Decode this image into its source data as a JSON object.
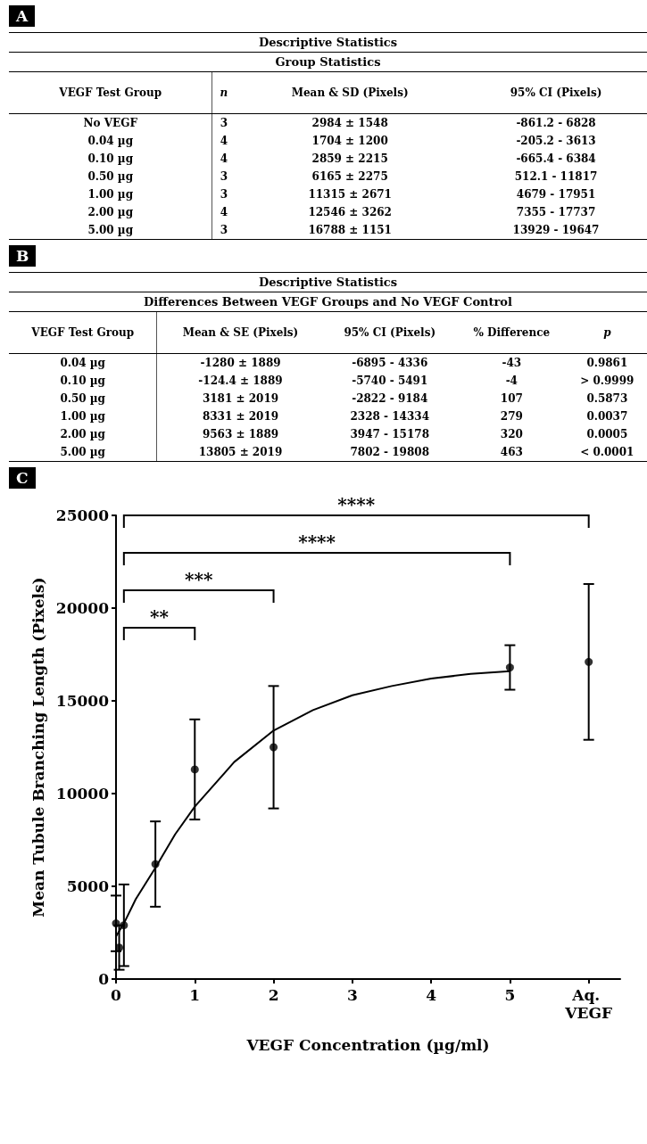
{
  "chart_data": [
    {
      "type": "other",
      "title": "Descriptive Statistics",
      "subtitle": "Group Statistics",
      "annotations": [
        "A",
        "VEGF Test Group",
        "n",
        "Mean & SD (Pixels)",
        "95% CI (Pixels)",
        "No VEGF",
        "3",
        "2984 ± 1548",
        "-861.2 - 6828",
        "0.04 µg",
        "4",
        "1704 ± 1200",
        "-205.2 - 3613",
        "0.10 µg",
        "4",
        "2859 ± 2215",
        "-665.4 - 6384",
        "0.50 µg",
        "3",
        "6165 ± 2275",
        "512.1 - 11817",
        "1.00 µg",
        "3",
        "11315 ± 2671",
        "4679 - 17951",
        "2.00 µg",
        "4",
        "12546 ± 3262",
        "7355 - 17737",
        "5.00 µg",
        "3",
        "16788 ± 1151",
        "13929 - 19647"
      ]
    },
    {
      "type": "other",
      "title": "Descriptive Statistics",
      "subtitle": "Differences Between VEGF Groups and No VEGF Control",
      "annotations": [
        "B",
        "VEGF Test Group",
        "Mean & SE (Pixels)",
        "95% CI (Pixels)",
        "% Difference",
        "p",
        "0.04 µg",
        "-1280 ± 1889",
        "-6895 - 4336",
        "-43",
        "0.9861",
        "0.10 µg",
        "-124.4 ± 1889",
        "-5740 - 5491",
        "-4",
        "> 0.9999",
        "0.50 µg",
        "3181 ± 2019",
        "-2822 - 9184",
        "107",
        "0.5873",
        "1.00 µg",
        "8331 ± 2019",
        "2328 - 14334",
        "279",
        "0.0037",
        "2.00 µg",
        "9563 ± 1889",
        "3947 - 15178",
        "320",
        "0.0005",
        "5.00 µg",
        "13805 ± 2019",
        "7802 - 19808",
        "463",
        "< 0.0001"
      ]
    },
    {
      "type": "scatter",
      "xlabel": "VEGF Concentration (µg/ml)",
      "ylabel": "Mean Tubule Branching Length (Pixels)",
      "xlim": [
        0,
        6.4
      ],
      "xticks": [
        0,
        1,
        2,
        3,
        4,
        5,
        {
          "value": 6,
          "label": "Aq. VEGF"
        }
      ],
      "ylim": [
        0,
        25000
      ],
      "yticks": [
        0,
        5000,
        10000,
        15000,
        20000,
        25000
      ],
      "grid": false,
      "marker": "circle",
      "series": [
        {
          "type": "scatter",
          "color": "#000000",
          "x": [
            0,
            0.04,
            0.1,
            0.5,
            1,
            2,
            5,
            6
          ],
          "values": [
            3000,
            1700,
            2900,
            6200,
            11300,
            12500,
            16800,
            17100
          ],
          "errors": [
            1500,
            1200,
            2200,
            2300,
            2700,
            3300,
            1200,
            4200
          ]
        },
        {
          "type": "line",
          "color": "#000000",
          "marker": "none",
          "x": [
            0,
            0.1,
            0.25,
            0.5,
            0.75,
            1,
            1.5,
            2,
            2.5,
            3,
            3.5,
            4,
            4.5,
            5
          ],
          "values": [
            2300,
            3000,
            4300,
            6000,
            7800,
            9300,
            11700,
            13400,
            14500,
            15300,
            15800,
            16200,
            16450,
            16600
          ]
        }
      ],
      "annotations": [
        "C",
        "**",
        "***",
        "****",
        "****"
      ]
    }
  ]
}
